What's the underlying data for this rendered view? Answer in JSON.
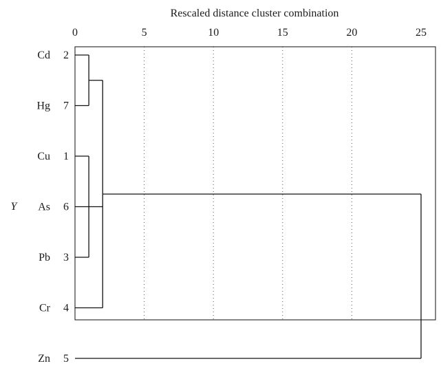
{
  "chart_data": {
    "type": "dendrogram",
    "title": "Rescaled distance cluster combination",
    "y_axis_label": "Y",
    "x_axis": {
      "range": [
        0,
        25
      ],
      "ticks": [
        0,
        5,
        10,
        15,
        20,
        25
      ]
    },
    "grid": "vertical dotted at 5, 10, 15, 20",
    "leaves": [
      {
        "name": "Cd",
        "id": "2"
      },
      {
        "name": "Hg",
        "id": "7"
      },
      {
        "name": "Cu",
        "id": "1"
      },
      {
        "name": "As",
        "id": "6"
      },
      {
        "name": "Pb",
        "id": "3"
      },
      {
        "name": "Cr",
        "id": "4"
      },
      {
        "name": "Zn",
        "id": "5"
      }
    ],
    "merges": [
      {
        "members": [
          "Cu",
          "As",
          "Pb"
        ],
        "distance": 1
      },
      {
        "members": [
          "Cd",
          "Hg"
        ],
        "distance": 1
      },
      {
        "members": [
          "Cd",
          "Hg",
          "Cu",
          "As",
          "Pb",
          "Cr"
        ],
        "distance": 2
      },
      {
        "members": [
          "Cd",
          "Hg",
          "Cu",
          "As",
          "Pb",
          "Cr",
          "Zn"
        ],
        "distance": 25
      }
    ]
  }
}
